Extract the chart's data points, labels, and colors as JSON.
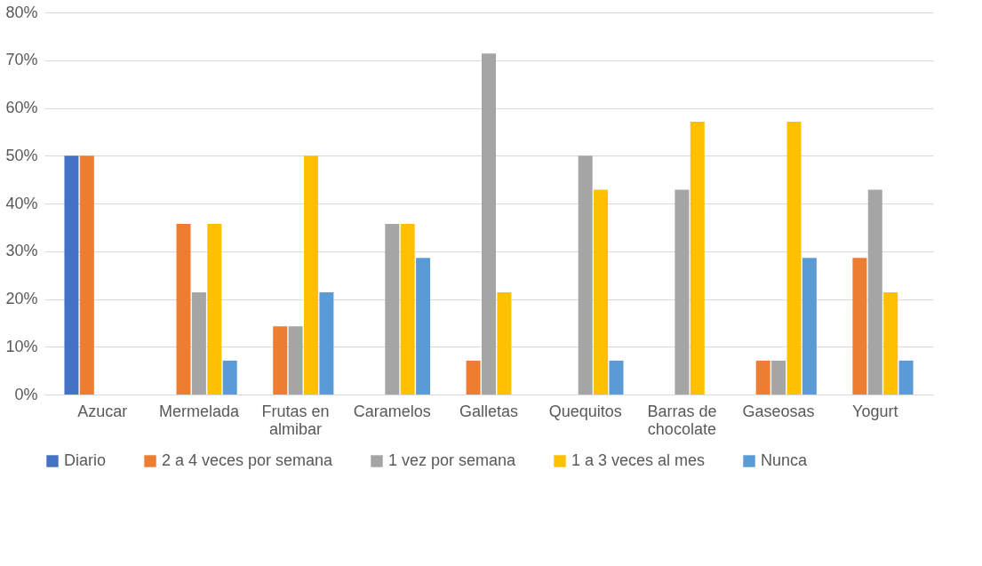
{
  "chart_data": {
    "type": "bar",
    "categories": [
      "Azucar",
      "Mermelada",
      "Frutas en almibar",
      "Caramelos",
      "Galletas",
      "Quequitos",
      "Barras de chocolate",
      "Gaseosas",
      "Yogurt"
    ],
    "series": [
      {
        "name": "Diario",
        "color": "#4472c4",
        "values": [
          50,
          0,
          0,
          0,
          0,
          0,
          0,
          0,
          0
        ]
      },
      {
        "name": "2 a 4 veces por semana",
        "color": "#ed7d31",
        "values": [
          50,
          35.7,
          14.3,
          0,
          7.1,
          0,
          0,
          7.1,
          28.6
        ]
      },
      {
        "name": "1 vez por semana",
        "color": "#a5a5a5",
        "values": [
          0,
          21.4,
          14.3,
          35.7,
          71.4,
          50,
          42.9,
          7.1,
          42.9
        ]
      },
      {
        "name": "1 a 3 veces al mes",
        "color": "#ffc000",
        "values": [
          0,
          35.7,
          50,
          35.7,
          21.4,
          42.9,
          57.1,
          57.1,
          21.4
        ]
      },
      {
        "name": "Nunca",
        "color": "#5b9bd5",
        "values": [
          0,
          7.1,
          21.4,
          28.6,
          0,
          7.1,
          0,
          28.6,
          7.1
        ]
      }
    ],
    "ylim": [
      0,
      80
    ],
    "yticks": [
      {
        "value": 0,
        "label": "0%"
      },
      {
        "value": 10,
        "label": "10%"
      },
      {
        "value": 20,
        "label": "20%"
      },
      {
        "value": 30,
        "label": "30%"
      },
      {
        "value": 40,
        "label": "40%"
      },
      {
        "value": 50,
        "label": "50%"
      },
      {
        "value": 60,
        "label": "60%"
      },
      {
        "value": 70,
        "label": "70%"
      },
      {
        "value": 80,
        "label": "80%"
      }
    ],
    "grid": "y",
    "legend": "bottom"
  }
}
